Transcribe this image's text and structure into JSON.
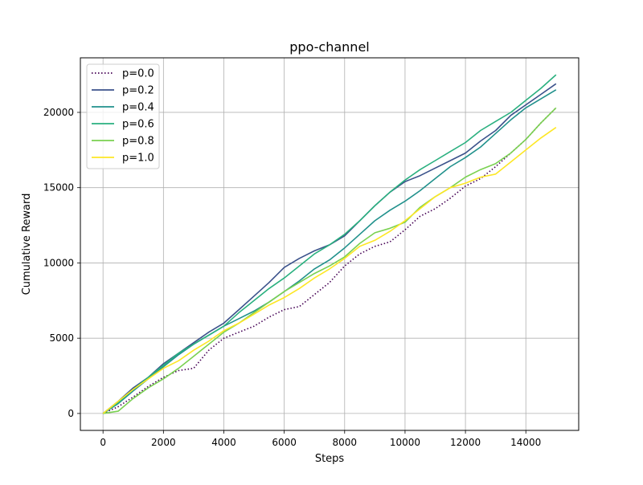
{
  "chart_data": {
    "type": "line",
    "title": "ppo-channel",
    "xlabel": "Steps",
    "ylabel": "Cumulative Reward",
    "xlim": [
      -750,
      15750
    ],
    "ylim": [
      -1125,
      23625
    ],
    "xticks": [
      0,
      2000,
      4000,
      6000,
      8000,
      10000,
      12000,
      14000
    ],
    "yticks": [
      0,
      5000,
      10000,
      15000,
      20000
    ],
    "grid": true,
    "legend_position": "upper-left",
    "x": [
      0,
      500,
      1000,
      1500,
      2000,
      2500,
      3000,
      3500,
      4000,
      4500,
      5000,
      5500,
      6000,
      6500,
      7000,
      7500,
      8000,
      8500,
      9000,
      9500,
      10000,
      10500,
      11000,
      11500,
      12000,
      12500,
      13000,
      13500,
      14000,
      14500,
      15000
    ],
    "series": [
      {
        "name": "p=0.0",
        "color": "#440154",
        "style": "dotted",
        "values": [
          0,
          450,
          1100,
          1800,
          2400,
          2850,
          3000,
          4200,
          5000,
          5400,
          5800,
          6400,
          6900,
          7100,
          7900,
          8700,
          9800,
          10600,
          11100,
          11400,
          12200,
          13100,
          13600,
          14300,
          15100,
          15600,
          16400,
          17300,
          18200,
          19300,
          20300
        ]
      },
      {
        "name": "p=0.2",
        "color": "#3b528b",
        "style": "solid",
        "values": [
          0,
          800,
          1700,
          2400,
          3300,
          4000,
          4700,
          5400,
          6000,
          6900,
          7800,
          8700,
          9700,
          10300,
          10800,
          11200,
          11800,
          12800,
          13800,
          14700,
          15400,
          15800,
          16300,
          16800,
          17300,
          18100,
          18800,
          19800,
          20500,
          21200,
          21900
        ]
      },
      {
        "name": "p=0.4",
        "color": "#21918c",
        "style": "solid",
        "values": [
          0,
          650,
          1500,
          2300,
          3100,
          3900,
          4600,
          5200,
          5800,
          6300,
          6800,
          7400,
          8100,
          8800,
          9600,
          10200,
          11000,
          11900,
          12800,
          13500,
          14100,
          14800,
          15600,
          16400,
          17000,
          17700,
          18600,
          19500,
          20300,
          20900,
          21500
        ]
      },
      {
        "name": "p=0.6",
        "color": "#2ab07f",
        "style": "solid",
        "values": [
          0,
          700,
          1600,
          2400,
          3200,
          4000,
          4600,
          5200,
          5800,
          6700,
          7500,
          8300,
          9000,
          9800,
          10600,
          11200,
          11900,
          12800,
          13800,
          14700,
          15500,
          16200,
          16800,
          17400,
          18000,
          18800,
          19400,
          20000,
          20800,
          21600,
          22500
        ]
      },
      {
        "name": "p=0.8",
        "color": "#7ad151",
        "style": "solid",
        "values": [
          0,
          150,
          1000,
          1700,
          2300,
          3000,
          3800,
          4600,
          5400,
          6000,
          6700,
          7400,
          8100,
          8700,
          9300,
          9800,
          10400,
          11300,
          12000,
          12300,
          12700,
          13700,
          14400,
          15000,
          15700,
          16200,
          16600,
          17300,
          18200,
          19300,
          20300
        ]
      },
      {
        "name": "p=1.0",
        "color": "#fde725",
        "style": "solid",
        "values": [
          0,
          800,
          1600,
          2300,
          3000,
          3500,
          4200,
          4800,
          5500,
          6000,
          6600,
          7200,
          7700,
          8300,
          9000,
          9600,
          10300,
          11100,
          11500,
          12100,
          12800,
          13600,
          14400,
          15000,
          15300,
          15700,
          15900,
          16700,
          17500,
          18300,
          19000
        ]
      }
    ]
  }
}
